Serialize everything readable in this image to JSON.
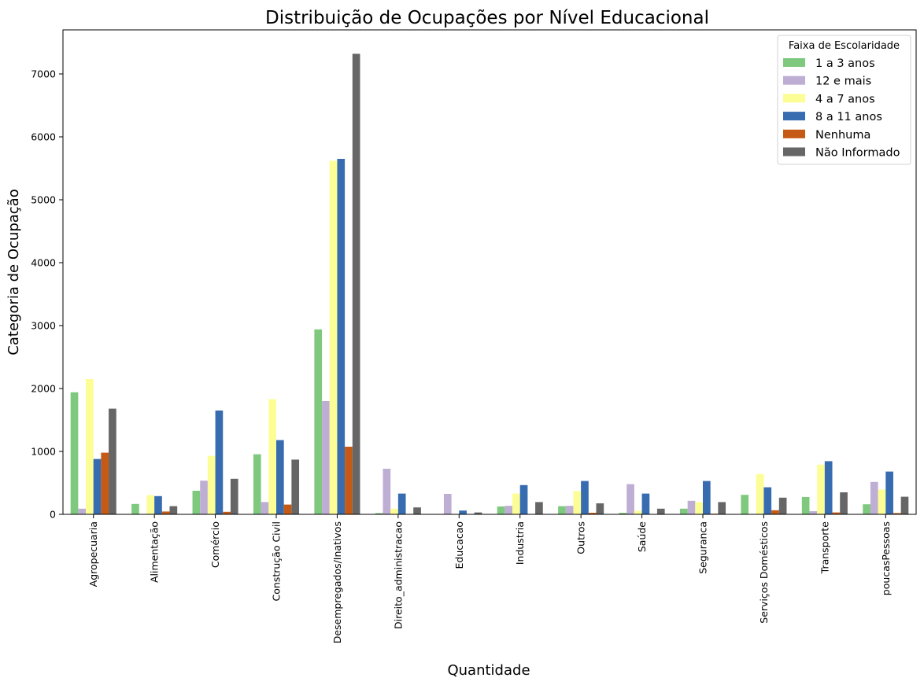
{
  "chart_data": {
    "type": "bar",
    "title": "Distribuição de Ocupações por Nível Educacional",
    "xlabel": "Quantidade",
    "ylabel": "Categoria de Ocupação",
    "ylim": [
      0,
      7700
    ],
    "yticks": [
      0,
      1000,
      2000,
      3000,
      4000,
      5000,
      6000,
      7000
    ],
    "grid": false,
    "legend": {
      "title": "Faixa de Escolaridade",
      "placement": "top-right"
    },
    "categories": [
      "Agropecuaria",
      "Alimentação",
      "Comércio",
      "Construção Civil",
      "Desempregados/Inativos",
      "Direito_administracao",
      "Educacao",
      "Industria",
      "Outros",
      "Saúde",
      "Seguranca",
      "Serviços Domésticos",
      "Transporte",
      "poucasPessoas"
    ],
    "series": [
      {
        "name": "1 a 3 anos",
        "color": "#7fc97f",
        "values": [
          1940,
          165,
          375,
          955,
          2940,
          20,
          0,
          125,
          130,
          25,
          90,
          310,
          275,
          160
        ]
      },
      {
        "name": "12 e mais",
        "color": "#beaed4",
        "values": [
          90,
          0,
          535,
          195,
          1800,
          725,
          325,
          135,
          135,
          480,
          215,
          0,
          50,
          515
        ]
      },
      {
        "name": "4 a 7 anos",
        "color": "#fdfd96",
        "values": [
          2150,
          305,
          930,
          1830,
          5620,
          90,
          0,
          330,
          370,
          55,
          195,
          640,
          790,
          395
        ]
      },
      {
        "name": "8 a 11 anos",
        "color": "#386cb0",
        "values": [
          880,
          290,
          1650,
          1180,
          5650,
          330,
          60,
          465,
          530,
          330,
          530,
          430,
          845,
          680
        ]
      },
      {
        "name": "Nenhuma",
        "color": "#c45a15",
        "values": [
          980,
          45,
          40,
          155,
          1075,
          0,
          0,
          0,
          25,
          0,
          10,
          65,
          30,
          20
        ]
      },
      {
        "name": "Não Informado",
        "color": "#666666",
        "values": [
          1680,
          130,
          565,
          870,
          7320,
          110,
          30,
          195,
          175,
          90,
          195,
          265,
          350,
          280
        ]
      }
    ]
  }
}
